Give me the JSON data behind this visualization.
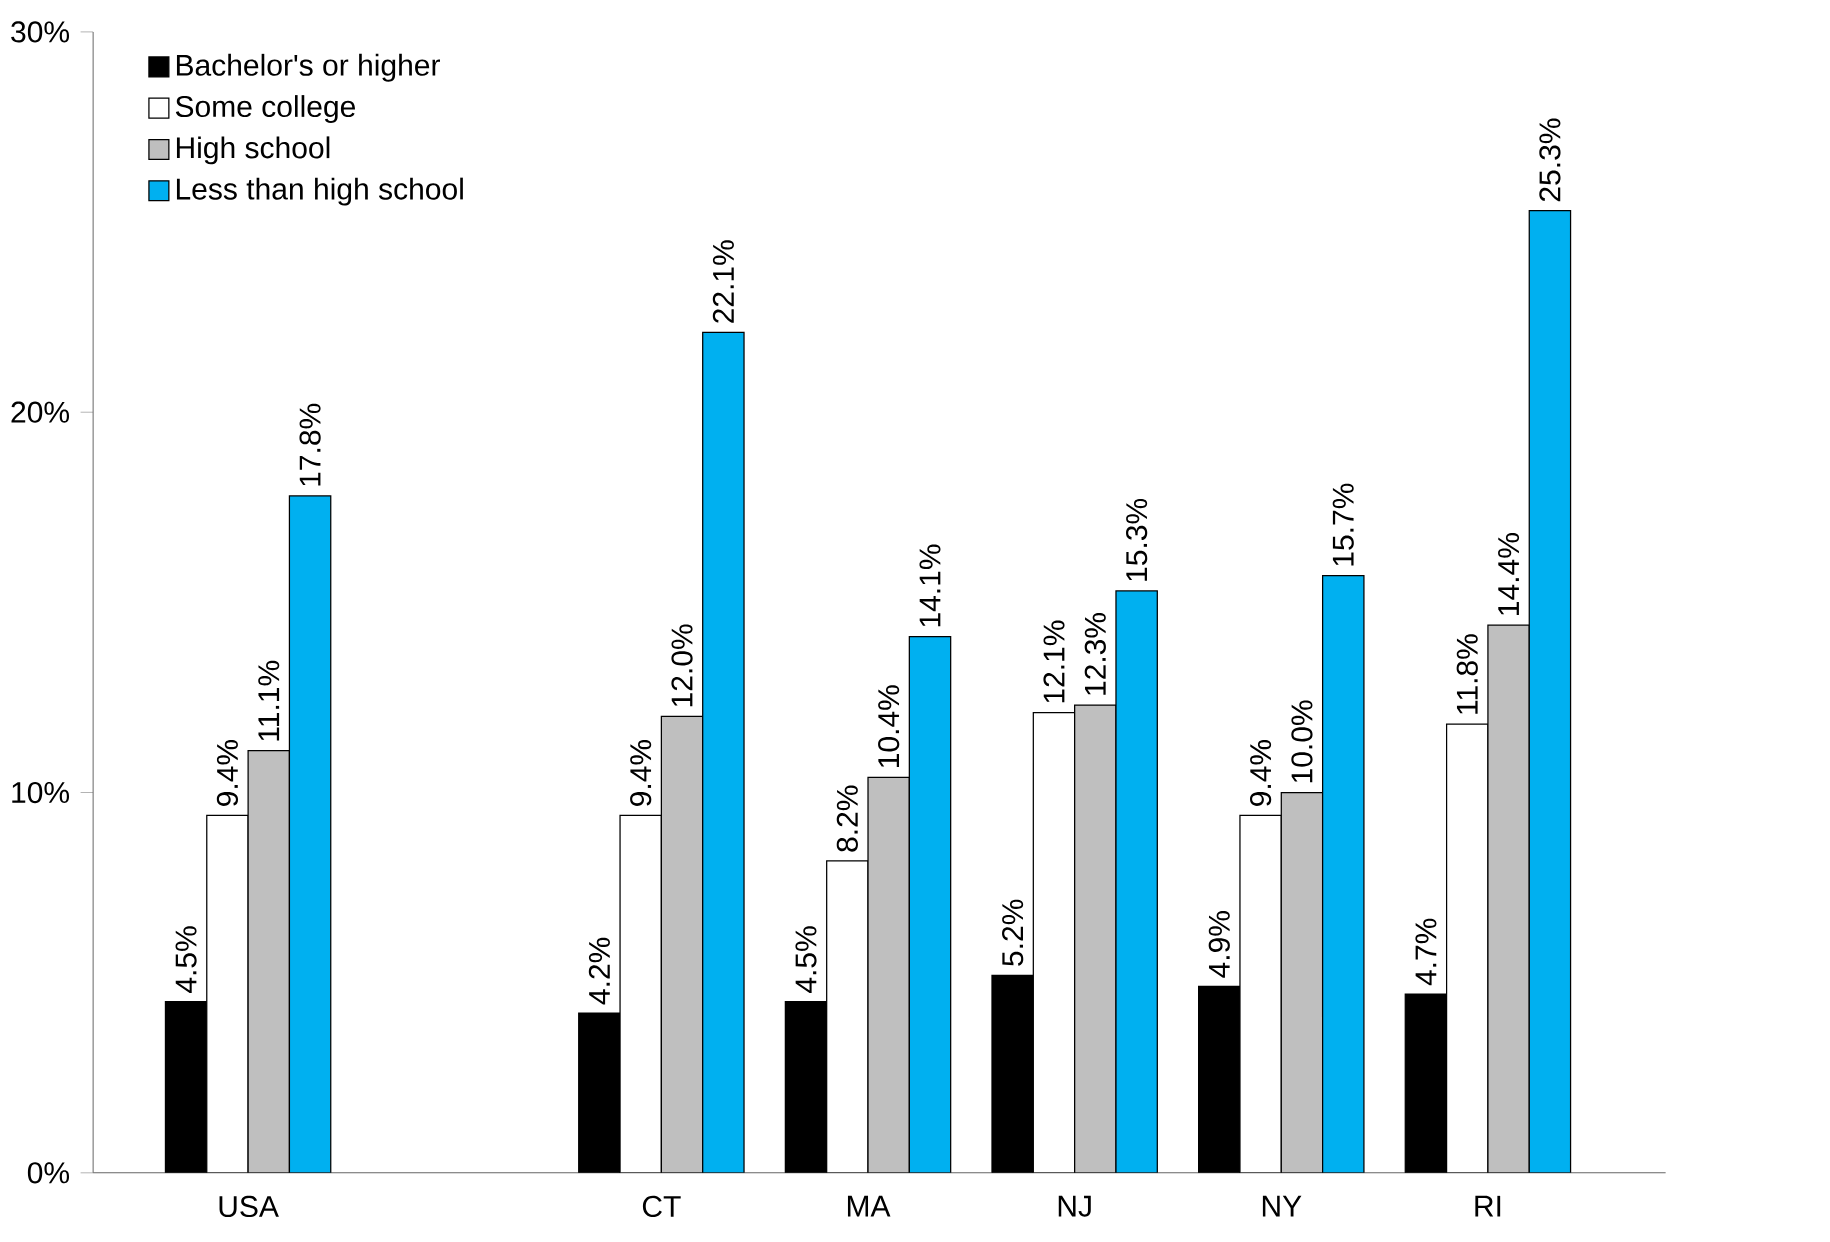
{
  "chart_data": {
    "type": "bar",
    "categories": [
      "USA",
      null,
      "CT",
      "MA",
      "NJ",
      "NY",
      "RI"
    ],
    "series": [
      {
        "name": "Bachelor's or higher",
        "color": "#000000",
        "values": [
          4.5,
          null,
          4.2,
          4.5,
          5.2,
          4.9,
          4.7
        ],
        "value_labels": [
          "4.5%",
          null,
          "4.2%",
          "4.5%",
          "5.2%",
          "4.9%",
          "4.7%"
        ]
      },
      {
        "name": "Some college",
        "color": "#ffffff",
        "values": [
          9.4,
          null,
          9.4,
          8.2,
          12.1,
          9.4,
          11.8
        ],
        "value_labels": [
          "9.4%",
          null,
          "9.4%",
          "8.2%",
          "12.1%",
          "9.4%",
          "11.8%"
        ]
      },
      {
        "name": "High school",
        "color": "#bfbfbf",
        "values": [
          11.1,
          null,
          12.0,
          10.4,
          12.3,
          10.0,
          14.4
        ],
        "value_labels": [
          "11.1%",
          null,
          "12.0%",
          "10.4%",
          "12.3%",
          "10.0%",
          "14.4%"
        ]
      },
      {
        "name": "Less than high school",
        "color": "#00b0f0",
        "values": [
          17.8,
          null,
          22.1,
          14.1,
          15.3,
          15.7,
          25.3
        ],
        "value_labels": [
          "17.8%",
          null,
          "22.1%",
          "14.1%",
          "15.3%",
          "15.7%",
          "25.3%"
        ]
      }
    ],
    "ylim": [
      0,
      30
    ],
    "yticks": [
      {
        "value": 0,
        "label": "0%"
      },
      {
        "value": 10,
        "label": "10%"
      },
      {
        "value": 20,
        "label": "20%"
      },
      {
        "value": 30,
        "label": "30%"
      }
    ],
    "grid": false,
    "legend": "top left"
  }
}
